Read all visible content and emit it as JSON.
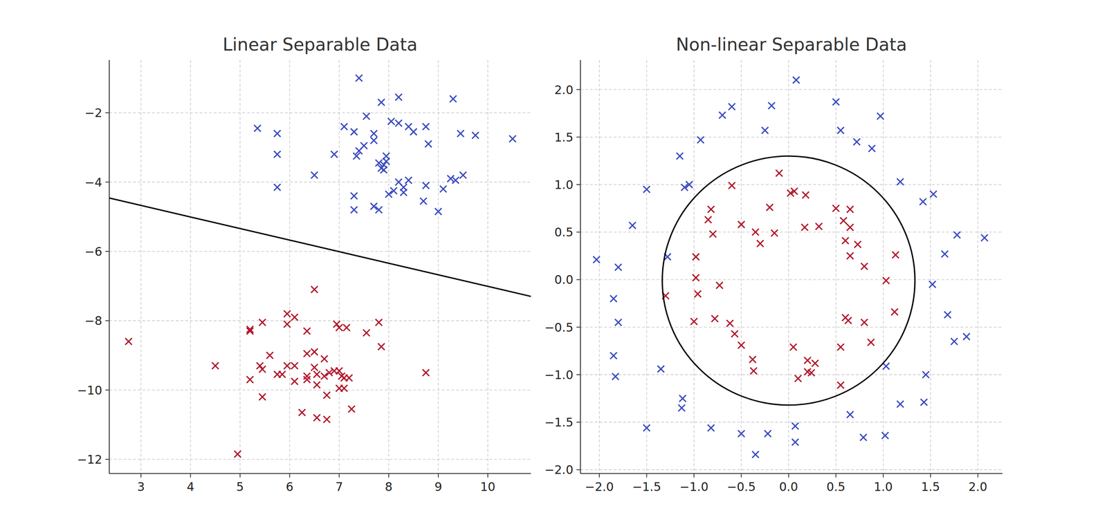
{
  "chart_data": [
    {
      "type": "scatter",
      "title": "Linear Separable Data",
      "grid": true,
      "xlim": [
        2.36,
        10.87
      ],
      "ylim": [
        -12.41,
        -0.48
      ],
      "xticks": [
        3,
        4,
        5,
        6,
        7,
        8,
        9,
        10
      ],
      "yticks": [
        {
          "value": -2,
          "label": "−2"
        },
        {
          "value": -4,
          "label": "−4"
        },
        {
          "value": -6,
          "label": "−6"
        },
        {
          "value": -8,
          "label": "−8"
        },
        {
          "value": -10,
          "label": "−10"
        },
        {
          "value": -12,
          "label": "−12"
        }
      ],
      "series": [
        {
          "color": "#3b4cc0",
          "marker": "x",
          "x": [
            7.4,
            8.2,
            9.3,
            7.85,
            5.35,
            5.75,
            7.55,
            7.1,
            7.3,
            8.05,
            8.2,
            8.75,
            8.4,
            8.5,
            7.7,
            7.7,
            7.5,
            8.8,
            9.45,
            9.75,
            10.5,
            5.75,
            6.9,
            7.4,
            7.35,
            7.95,
            7.95,
            7.9,
            7.8,
            7.85,
            7.9,
            8.4,
            8.2,
            8.3,
            8.3,
            8.1,
            8.0,
            6.5,
            5.75,
            7.3,
            8.75,
            9.25,
            9.35,
            9.5,
            9.1,
            8.7,
            7.7,
            7.8,
            7.3,
            9.0
          ],
          "values": [
            -1.0,
            -1.55,
            -1.6,
            -1.7,
            -2.45,
            -2.6,
            -2.1,
            -2.4,
            -2.55,
            -2.25,
            -2.3,
            -2.4,
            -2.4,
            -2.55,
            -2.6,
            -2.8,
            -2.95,
            -2.9,
            -2.6,
            -2.65,
            -2.75,
            -3.2,
            -3.2,
            -3.1,
            -3.25,
            -3.25,
            -3.4,
            -3.5,
            -3.45,
            -3.6,
            -3.65,
            -3.95,
            -4.0,
            -4.15,
            -4.3,
            -4.25,
            -4.35,
            -3.8,
            -4.15,
            -4.4,
            -4.1,
            -3.9,
            -3.95,
            -3.8,
            -4.2,
            -4.55,
            -4.7,
            -4.8,
            -4.8,
            -4.85
          ]
        },
        {
          "color": "#b2182b",
          "marker": "x",
          "x": [
            6.5,
            2.75,
            4.5,
            4.95,
            5.2,
            5.2,
            5.45,
            5.95,
            6.1,
            5.95,
            6.35,
            6.95,
            7.0,
            7.15,
            7.55,
            7.8,
            7.85,
            5.2,
            5.4,
            5.45,
            5.6,
            5.45,
            5.75,
            5.85,
            5.95,
            6.1,
            6.1,
            6.35,
            6.5,
            6.35,
            6.35,
            6.5,
            6.55,
            6.55,
            6.7,
            6.7,
            6.8,
            6.9,
            7.0,
            7.05,
            7.1,
            7.2,
            7.0,
            7.1,
            6.75,
            6.25,
            6.55,
            6.75,
            7.25,
            8.75
          ],
          "values": [
            -7.1,
            -8.6,
            -9.3,
            -11.85,
            -8.3,
            -8.25,
            -8.05,
            -7.8,
            -7.9,
            -8.1,
            -8.3,
            -8.1,
            -8.2,
            -8.2,
            -8.35,
            -8.05,
            -8.75,
            -9.7,
            -9.3,
            -9.4,
            -9.0,
            -10.2,
            -9.55,
            -9.55,
            -9.3,
            -9.3,
            -9.75,
            -8.95,
            -8.9,
            -9.6,
            -9.7,
            -9.35,
            -9.55,
            -9.85,
            -9.1,
            -9.6,
            -9.5,
            -9.45,
            -9.45,
            -9.6,
            -9.65,
            -9.65,
            -9.95,
            -9.95,
            -10.15,
            -10.65,
            -10.8,
            -10.85,
            -10.55,
            -9.5
          ]
        },
        {
          "type": "line",
          "color": "#000000",
          "x": [
            2.36,
            10.87
          ],
          "values": [
            -4.46,
            -7.3
          ]
        }
      ]
    },
    {
      "type": "scatter",
      "title": "Non-linear Separable Data",
      "grid": true,
      "xlim": [
        -2.2,
        2.26
      ],
      "ylim": [
        -2.04,
        2.31
      ],
      "xticks": [
        {
          "value": -2,
          "label": "−2.0"
        },
        {
          "value": -1.5,
          "label": "−1.5"
        },
        {
          "value": -1,
          "label": "−1.0"
        },
        {
          "value": -0.5,
          "label": "−0.5"
        },
        {
          "value": 0,
          "label": "0.0"
        },
        {
          "value": 0.5,
          "label": "0.5"
        },
        {
          "value": 1,
          "label": "1.0"
        },
        {
          "value": 1.5,
          "label": "1.5"
        },
        {
          "value": 2,
          "label": "2.0"
        }
      ],
      "yticks": [
        {
          "value": -2,
          "label": "−2.0"
        },
        {
          "value": -1.5,
          "label": "−1.5"
        },
        {
          "value": -1,
          "label": "−1.0"
        },
        {
          "value": -0.5,
          "label": "−0.5"
        },
        {
          "value": 0,
          "label": "0.0"
        },
        {
          "value": 0.5,
          "label": "0.5"
        },
        {
          "value": 1,
          "label": "1.0"
        },
        {
          "value": 1.5,
          "label": "1.5"
        },
        {
          "value": 2,
          "label": "2.0"
        }
      ],
      "series": [
        {
          "color": "#3b4cc0",
          "marker": "x",
          "x": [
            0.08,
            -0.6,
            -0.18,
            0.5,
            -0.7,
            0.97,
            -0.25,
            0.55,
            -0.93,
            0.72,
            0.88,
            -1.15,
            1.18,
            -1.1,
            -1.05,
            -1.5,
            1.53,
            1.42,
            -1.65,
            1.78,
            2.07,
            -1.28,
            1.65,
            -2.03,
            -1.8,
            1.52,
            -1.85,
            -1.8,
            1.68,
            1.75,
            1.88,
            -1.85,
            -1.83,
            -1.35,
            1.03,
            1.45,
            -1.12,
            -1.13,
            1.18,
            1.43,
            0.65,
            -1.5,
            -0.82,
            -0.5,
            -0.22,
            0.07,
            0.79,
            1.02,
            0.07,
            -0.35
          ],
          "values": [
            2.1,
            1.82,
            1.83,
            1.87,
            1.73,
            1.72,
            1.57,
            1.57,
            1.47,
            1.45,
            1.38,
            1.3,
            1.03,
            0.97,
            1.0,
            0.95,
            0.9,
            0.82,
            0.57,
            0.47,
            0.44,
            0.24,
            0.27,
            0.21,
            0.13,
            -0.05,
            -0.2,
            -0.45,
            -0.37,
            -0.65,
            -0.6,
            -0.8,
            -1.02,
            -0.94,
            -0.91,
            -1.0,
            -1.25,
            -1.35,
            -1.31,
            -1.29,
            -1.42,
            -1.56,
            -1.56,
            -1.62,
            -1.62,
            -1.54,
            -1.66,
            -1.64,
            -1.71,
            -1.84
          ]
        },
        {
          "color": "#b2182b",
          "marker": "x",
          "x": [
            -0.1,
            -0.6,
            0.02,
            0.06,
            0.18,
            -0.82,
            -0.2,
            0.5,
            0.65,
            -0.85,
            -0.5,
            -0.35,
            -0.15,
            0.17,
            0.32,
            0.58,
            0.65,
            -0.8,
            -0.3,
            0.6,
            0.73,
            0.65,
            1.13,
            -0.98,
            0.8,
            -0.73,
            -0.98,
            -0.96,
            -1.3,
            1.03,
            -1.0,
            -0.78,
            -0.62,
            -0.57,
            0.6,
            0.63,
            0.8,
            1.12,
            -0.5,
            0.05,
            0.55,
            0.87,
            -0.38,
            0.2,
            -0.37,
            0.2,
            0.24,
            0.28,
            0.1,
            0.55
          ],
          "values": [
            1.12,
            0.99,
            0.91,
            0.93,
            0.89,
            0.74,
            0.76,
            0.75,
            0.74,
            0.63,
            0.58,
            0.5,
            0.49,
            0.55,
            0.56,
            0.62,
            0.55,
            0.48,
            0.38,
            0.41,
            0.37,
            0.25,
            0.26,
            0.24,
            0.14,
            -0.06,
            0.02,
            -0.15,
            -0.17,
            -0.01,
            -0.44,
            -0.41,
            -0.46,
            -0.57,
            -0.4,
            -0.43,
            -0.45,
            -0.34,
            -0.69,
            -0.71,
            -0.71,
            -0.66,
            -0.84,
            -0.85,
            -0.96,
            -0.97,
            -0.98,
            -0.88,
            -1.04,
            -1.11
          ]
        },
        {
          "type": "ellipse",
          "color": "#000000",
          "cx": 0.0,
          "cy": -0.01,
          "rx": 1.335,
          "ry": 1.31
        }
      ]
    }
  ]
}
